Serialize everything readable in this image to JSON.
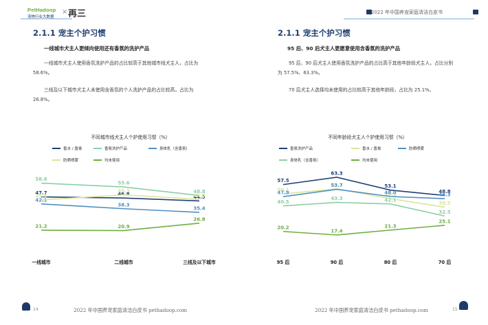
{
  "header": {
    "logo_main": "PetHadoop",
    "logo_sub": "宠物行业大数据",
    "cross": "×",
    "partner": "再三",
    "right_text": "2022 年中国养宠家庭清洁白皮书"
  },
  "left": {
    "section_title": "2.1.1 宠主个护习惯",
    "subheading": "一线城市犬主人更倾向使用还有香氛的洗护产品",
    "p1_line1": "一线城市犬主人使用香氛洗护产品的占比较高于其他城市线犬主人，占比为",
    "p1_line2": "58.6%。",
    "p2_line1": "三线及以下城市犬主人未使用含香氛的个人洗护产品的占比较高，占比为",
    "p2_line2": "26.8%。",
    "chart_title": "不同城市线犬主人个护使用习惯（%）",
    "footer": "2022 年中国养宠家庭清洁白皮书 pethadoop.com",
    "page_num": "14"
  },
  "right": {
    "section_title": "2.1.1 宠主个护习惯",
    "subheading": "95 后、90 后犬主人更愿意使用含香氛的洗护产品",
    "p1_line1": "95 后、90 后犬主人使用香氛洗护产品的占比高于其他年龄段犬主人，占比分别",
    "p1_line2": "为 57.5%、63.3%。",
    "p2_line1": "70 后犬主人选择均未使用的占比较高于其他年龄段，占比为 25.1%。",
    "chart_title": "不同年龄段犬主人个护使用习惯（%）",
    "footer": "2022 年中国养宠家庭清洁白皮书 pethadoop.com",
    "page_num": "15"
  },
  "chart_data": [
    {
      "type": "line",
      "title": "不同城市线犬主人个护使用习惯（%）",
      "categories": [
        "一线城市",
        "二线城市",
        "三线及以下城市"
      ],
      "legend_rows": [
        3,
        2
      ],
      "series": [
        {
          "name": "香水 / 香膏",
          "color": "#1f3f75",
          "values": [
            47.7,
            46.8,
            44.5
          ]
        },
        {
          "name": "香氛洗护产品",
          "color": "#8bcfa5",
          "values": [
            58.6,
            55.6,
            48.8
          ]
        },
        {
          "name": "身体乳（含香氛）",
          "color": "#4f8fc4",
          "values": [
            42.1,
            38.3,
            35.4
          ]
        },
        {
          "name": "防晒喷雾",
          "color": "#d9e59a",
          "values": [
            45.3,
            49.3,
            45.8
          ]
        },
        {
          "name": "均未使用",
          "color": "#6cae3f",
          "values": [
            21.2,
            20.9,
            26.8
          ]
        }
      ]
    },
    {
      "type": "line",
      "title": "不同年龄段犬主人个护使用习惯（%）",
      "categories": [
        "95 后",
        "90 后",
        "80 后",
        "70 后"
      ],
      "legend_rows": [
        3,
        2
      ],
      "series": [
        {
          "name": "香氛洗护产品",
          "color": "#1f3f75",
          "values": [
            57.5,
            63.3,
            53.1,
            48.8
          ]
        },
        {
          "name": "香水 / 香膏",
          "color": "#d9e59a",
          "values": [
            50.1,
            54.1,
            46.3,
            39.5
          ]
        },
        {
          "name": "防晒喷雾",
          "color": "#4f8fc4",
          "values": [
            47.9,
            53.7,
            48.0,
            46.3
          ]
        },
        {
          "name": "身体乳（含香氛）",
          "color": "#8bcfa5",
          "values": [
            40.5,
            43.3,
            42.1,
            32.5
          ]
        },
        {
          "name": "均未使用",
          "color": "#6cae3f",
          "values": [
            20.2,
            17.4,
            21.3,
            25.1
          ]
        }
      ]
    }
  ]
}
